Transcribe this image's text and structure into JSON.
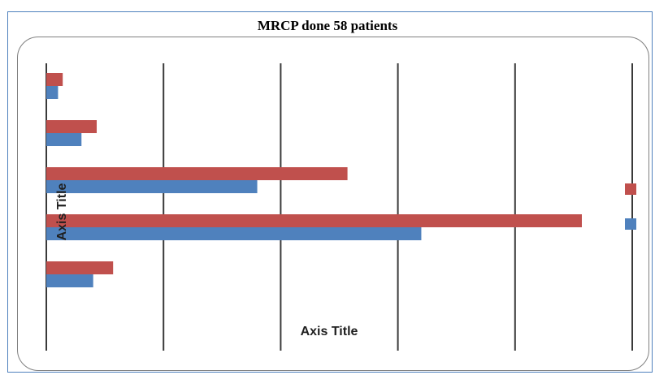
{
  "chart_data": {
    "type": "bar",
    "orientation": "horizontal",
    "title": "MRCP done 58 patients",
    "xlabel": "Axis Title",
    "ylabel": "Axis Title",
    "xlim": [
      0,
      50
    ],
    "grid": true,
    "legend_position": "right",
    "categories": [
      "",
      "",
      "",
      "",
      ""
    ],
    "series": [
      {
        "color": "#c0504d",
        "values": [
          1.4,
          4.3,
          25.7,
          45.7,
          5.7
        ]
      },
      {
        "color": "#4f81bd",
        "values": [
          1.0,
          3.0,
          18.0,
          32.0,
          4.0
        ]
      }
    ]
  }
}
